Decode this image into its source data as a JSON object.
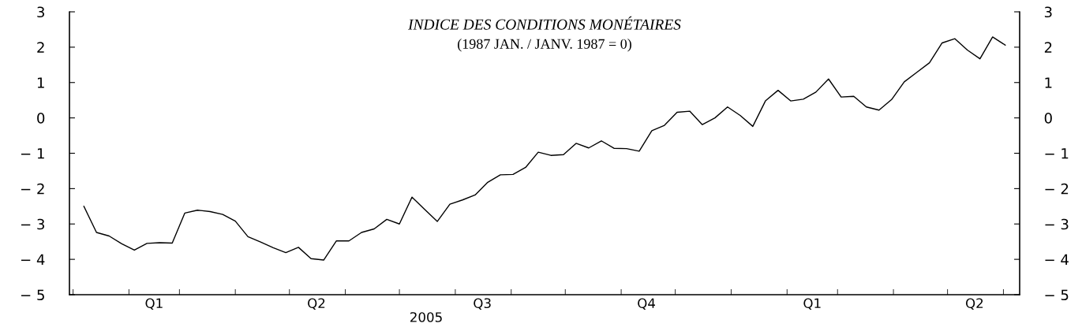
{
  "chart_data": {
    "type": "line",
    "title": "INDICE DES CONDITIONS MONÉTAIRES",
    "subtitle": "(1987 JAN. / JANV. 1987 = 0)",
    "x": [
      "2005-01-07",
      "2005-01-14",
      "2005-01-21",
      "2005-01-28",
      "2005-02-04",
      "2005-02-11",
      "2005-02-18",
      "2005-02-25",
      "2005-03-04",
      "2005-03-11",
      "2005-03-18",
      "2005-03-25",
      "2005-04-01",
      "2005-04-08",
      "2005-04-15",
      "2005-04-22",
      "2005-04-29",
      "2005-05-06",
      "2005-05-13",
      "2005-05-20",
      "2005-05-27",
      "2005-06-03",
      "2005-06-10",
      "2005-06-17",
      "2005-06-24",
      "2005-07-01",
      "2005-07-08",
      "2005-07-15",
      "2005-07-22",
      "2005-07-29",
      "2005-08-05",
      "2005-08-12",
      "2005-08-19",
      "2005-08-26",
      "2005-09-02",
      "2005-09-09",
      "2005-09-16",
      "2005-09-23",
      "2005-09-30",
      "2005-10-07",
      "2005-10-14",
      "2005-10-21",
      "2005-10-28",
      "2005-11-04",
      "2005-11-11",
      "2005-11-18",
      "2005-11-25",
      "2005-12-02",
      "2005-12-09",
      "2005-12-16",
      "2005-12-23",
      "2005-12-30",
      "2006-01-06",
      "2006-01-13",
      "2006-01-20",
      "2006-01-27",
      "2006-02-03",
      "2006-02-10",
      "2006-02-17",
      "2006-02-24",
      "2006-03-03",
      "2006-03-10",
      "2006-03-17",
      "2006-03-24",
      "2006-03-31",
      "2006-04-07",
      "2006-04-14",
      "2006-04-21",
      "2006-04-28",
      "2006-05-05",
      "2006-05-12",
      "2006-05-19",
      "2006-05-26",
      "2006-06-02"
    ],
    "series": [
      {
        "color": "#000000",
        "values": [
          -2.5,
          -3.24,
          -3.34,
          -3.56,
          -3.74,
          -3.55,
          -3.53,
          -3.54,
          -2.69,
          -2.61,
          -2.65,
          -2.73,
          -2.92,
          -3.36,
          -3.51,
          -3.67,
          -3.81,
          -3.66,
          -3.98,
          -4.02,
          -3.48,
          -3.48,
          -3.24,
          -3.14,
          -2.87,
          -3.0,
          -2.24,
          -2.59,
          -2.93,
          -2.44,
          -2.32,
          -2.18,
          -1.82,
          -1.61,
          -1.6,
          -1.4,
          -0.97,
          -1.06,
          -1.04,
          -0.72,
          -0.85,
          -0.65,
          -0.86,
          -0.87,
          -0.94,
          -0.36,
          -0.21,
          0.16,
          0.19,
          -0.19,
          0.0,
          0.31,
          0.07,
          -0.24,
          0.48,
          0.78,
          0.48,
          0.53,
          0.73,
          1.1,
          0.59,
          0.61,
          0.31,
          0.22,
          0.52,
          1.02,
          1.29,
          1.56,
          2.12,
          2.24,
          1.92,
          1.67,
          2.29,
          2.06
        ]
      }
    ],
    "xlim": [
      "2004-12-30",
      "2006-06-10"
    ],
    "xticks": [
      {
        "value": "2005-01-01",
        "label": null
      },
      {
        "value": "2005-02-01",
        "label": null
      },
      {
        "value": "2005-02-15",
        "label": "Q1"
      },
      {
        "value": "2005-03-01",
        "label": null
      },
      {
        "value": "2005-04-01",
        "label": null
      },
      {
        "value": "2005-05-01",
        "label": null
      },
      {
        "value": "2005-05-16",
        "label": "Q2"
      },
      {
        "value": "2005-06-01",
        "label": null
      },
      {
        "value": "2005-07-01",
        "label": null
      },
      {
        "value": "2005-08-01",
        "label": null
      },
      {
        "value": "2005-08-16",
        "label": "Q3"
      },
      {
        "value": "2005-09-01",
        "label": null
      },
      {
        "value": "2005-10-01",
        "label": null
      },
      {
        "value": "2005-11-01",
        "label": null
      },
      {
        "value": "2005-11-15",
        "label": "Q4"
      },
      {
        "value": "2005-12-01",
        "label": null
      },
      {
        "value": "2006-01-01",
        "label": null
      },
      {
        "value": "2006-02-01",
        "label": null
      },
      {
        "value": "2006-02-15",
        "label": "Q1"
      },
      {
        "value": "2006-03-01",
        "label": null
      },
      {
        "value": "2006-04-01",
        "label": null
      },
      {
        "value": "2006-05-01",
        "label": null
      },
      {
        "value": "2006-05-16",
        "label": "Q2"
      },
      {
        "value": "2006-06-01",
        "label": null
      }
    ],
    "ylim": [
      -5,
      3
    ],
    "yticks": [
      -5,
      -4,
      -3,
      -2,
      -1,
      0,
      1,
      2,
      3
    ],
    "y2lim": [
      -5,
      3
    ],
    "y2ticks": [
      -5,
      -4,
      -3,
      -2,
      -1,
      0,
      1,
      2,
      3
    ],
    "annotations": [
      "2005"
    ],
    "grid": false,
    "legend": false,
    "marker": "none",
    "line_style": "solid"
  }
}
